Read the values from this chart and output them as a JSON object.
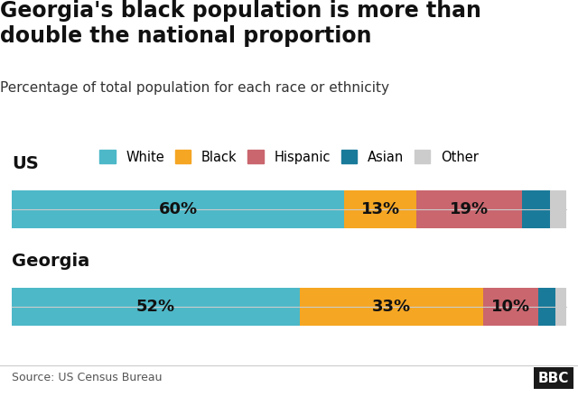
{
  "title": "Georgia's black population is more than\ndouble the national proportion",
  "subtitle": "Percentage of total population for each race or ethnicity",
  "source": "Source: US Census Bureau",
  "categories": [
    "White",
    "Black",
    "Hispanic",
    "Asian",
    "Other"
  ],
  "colors": {
    "White": "#4db8c8",
    "Black": "#f5a623",
    "Hispanic": "#c9666e",
    "Asian": "#1a7a9a",
    "Other": "#cccccc"
  },
  "us_data": {
    "label": "US",
    "values": {
      "White": 60,
      "Black": 13,
      "Hispanic": 19,
      "Asian": 5,
      "Other": 3
    },
    "show_labels": [
      "White",
      "Black",
      "Hispanic"
    ]
  },
  "georgia_data": {
    "label": "Georgia",
    "values": {
      "White": 52,
      "Black": 33,
      "Hispanic": 10,
      "Asian": 3,
      "Other": 2
    },
    "show_labels": [
      "White",
      "Black",
      "Hispanic"
    ]
  },
  "background_color": "#ffffff",
  "bar_height": 0.55,
  "title_fontsize": 17,
  "subtitle_fontsize": 11,
  "label_fontsize": 13,
  "row_label_fontsize": 14
}
